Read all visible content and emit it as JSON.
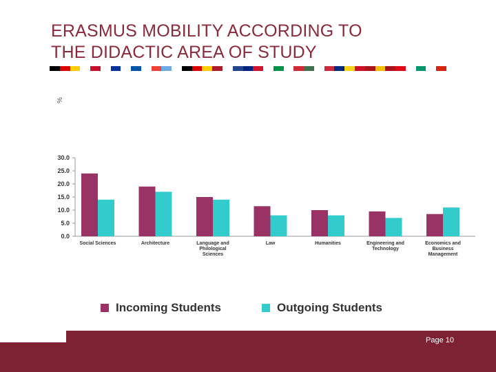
{
  "slide": {
    "title_line1": "ERASMUS MOBILITY ACCORDING TO",
    "title_line2": "THE DIDACTIC AREA OF STUDY",
    "page_label": "Page 10"
  },
  "colors": {
    "incoming": "#993366",
    "outgoing": "#33cccc",
    "brand": "#7c2233",
    "title": "#8b2a3a"
  },
  "flag_colors": [
    "#000000",
    "#dd0000",
    "#ffcc00",
    "#ffffff",
    "#c8102e",
    "#ffffff",
    "#003399",
    "#ffffff",
    "#0055a4",
    "#ffffff",
    "#ef4135",
    "#6cace4",
    "#ffffff",
    "#000000",
    "#dd0000",
    "#ffce00",
    "#ae1c28",
    "#ffffff",
    "#21468b",
    "#00247d",
    "#cf142b",
    "#ffffff",
    "#009246",
    "#ffffff",
    "#ce2b37",
    "#436f4d",
    "#ffffff",
    "#cd2a3e",
    "#002b7f",
    "#fcd116",
    "#ce1126",
    "#aa151b",
    "#f1bf00",
    "#aa151b",
    "#e30a17",
    "#ffffff",
    "#00966e",
    "#ffffff",
    "#d62612"
  ],
  "chart_data": {
    "type": "bar",
    "unit_label": "%",
    "categories": [
      [
        "Social Sciences"
      ],
      [
        "Architecture"
      ],
      [
        "Language and",
        "Philological",
        "Sciences"
      ],
      [
        "Law"
      ],
      [
        "Humanities"
      ],
      [
        "Engineering and",
        "Technology"
      ],
      [
        "Economics and",
        "Business",
        "Management"
      ]
    ],
    "series": [
      {
        "name": "Incoming Students",
        "values": [
          24.0,
          19.0,
          15.0,
          11.5,
          10.0,
          9.5,
          8.5
        ]
      },
      {
        "name": "Outgoing Students",
        "values": [
          14.0,
          17.0,
          14.0,
          8.0,
          8.0,
          7.0,
          11.0
        ]
      }
    ],
    "ylim": [
      0,
      30
    ],
    "yticks": [
      "0.0",
      "5.0",
      "10.0",
      "15.0",
      "20.0",
      "25.0",
      "30.0"
    ],
    "ytick_values": [
      0,
      5,
      10,
      15,
      20,
      25,
      30
    ],
    "grid": false,
    "legend_position": "bottom"
  }
}
